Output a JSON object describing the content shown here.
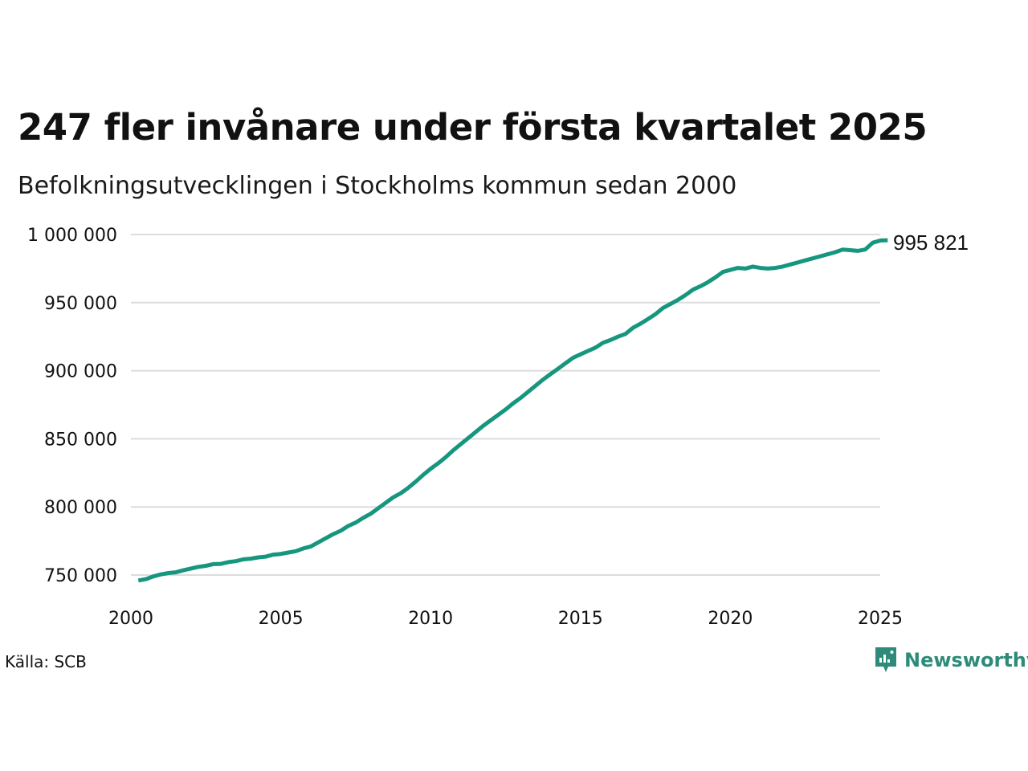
{
  "title": "247 fler invånare under första kvartalet 2025",
  "subtitle": "Befolkningsutvecklingen i Stockholms kommun sedan 2000",
  "source": "Källa: SCB",
  "brand": {
    "name": "Newsworthy",
    "icon": "newsworthy-logo-icon",
    "color": "#2e8b7a"
  },
  "colors": {
    "line": "#16967e",
    "grid": "#dcdcdc",
    "text": "#111111"
  },
  "chart_data": {
    "type": "line",
    "title": "247 fler invånare under första kvartalet 2025",
    "subtitle": "Befolkningsutvecklingen i Stockholms kommun sedan 2000",
    "xlabel": "",
    "ylabel": "",
    "xlim": [
      2000,
      2025
    ],
    "ylim": [
      750000,
      1000000
    ],
    "x_ticks": [
      2000,
      2005,
      2010,
      2015,
      2020,
      2025
    ],
    "x_tick_labels": [
      "2000",
      "2005",
      "2010",
      "2015",
      "2020",
      "2025"
    ],
    "y_ticks": [
      750000,
      800000,
      850000,
      900000,
      950000,
      1000000
    ],
    "y_tick_labels": [
      "750 000",
      "800 000",
      "850 000",
      "900 000",
      "950 000",
      "1 000 000"
    ],
    "grid": "horizontal",
    "end_label": "995 821",
    "series": [
      {
        "color": "#16967e",
        "points": [
          [
            2000.25,
            746000
          ],
          [
            2000.5,
            747000
          ],
          [
            2000.75,
            749000
          ],
          [
            2001.0,
            750500
          ],
          [
            2001.25,
            751500
          ],
          [
            2001.5,
            752000
          ],
          [
            2001.75,
            753500
          ],
          [
            2002.0,
            754800
          ],
          [
            2002.25,
            756000
          ],
          [
            2002.5,
            756800
          ],
          [
            2002.75,
            758000
          ],
          [
            2003.0,
            758200
          ],
          [
            2003.25,
            759500
          ],
          [
            2003.5,
            760200
          ],
          [
            2003.75,
            761500
          ],
          [
            2004.0,
            762000
          ],
          [
            2004.25,
            763000
          ],
          [
            2004.5,
            763500
          ],
          [
            2004.75,
            765000
          ],
          [
            2005.0,
            765500
          ],
          [
            2005.25,
            766500
          ],
          [
            2005.5,
            767500
          ],
          [
            2005.75,
            769500
          ],
          [
            2006.0,
            771000
          ],
          [
            2006.25,
            774000
          ],
          [
            2006.5,
            777000
          ],
          [
            2006.75,
            780000
          ],
          [
            2007.0,
            782500
          ],
          [
            2007.25,
            786000
          ],
          [
            2007.5,
            788500
          ],
          [
            2007.75,
            792000
          ],
          [
            2008.0,
            795000
          ],
          [
            2008.25,
            799000
          ],
          [
            2008.5,
            803000
          ],
          [
            2008.75,
            807000
          ],
          [
            2009.0,
            810000
          ],
          [
            2009.25,
            814000
          ],
          [
            2009.5,
            818500
          ],
          [
            2009.75,
            823500
          ],
          [
            2010.0,
            828000
          ],
          [
            2010.25,
            832000
          ],
          [
            2010.5,
            836500
          ],
          [
            2010.75,
            841500
          ],
          [
            2011.0,
            846000
          ],
          [
            2011.25,
            850500
          ],
          [
            2011.5,
            855000
          ],
          [
            2011.75,
            859500
          ],
          [
            2012.0,
            863500
          ],
          [
            2012.25,
            867500
          ],
          [
            2012.5,
            871500
          ],
          [
            2012.75,
            876000
          ],
          [
            2013.0,
            880000
          ],
          [
            2013.25,
            884500
          ],
          [
            2013.5,
            889000
          ],
          [
            2013.75,
            893500
          ],
          [
            2014.0,
            897500
          ],
          [
            2014.25,
            901500
          ],
          [
            2014.5,
            905500
          ],
          [
            2014.75,
            909500
          ],
          [
            2015.0,
            912000
          ],
          [
            2015.25,
            914500
          ],
          [
            2015.5,
            917000
          ],
          [
            2015.75,
            920500
          ],
          [
            2016.0,
            922500
          ],
          [
            2016.25,
            925000
          ],
          [
            2016.5,
            927000
          ],
          [
            2016.75,
            931500
          ],
          [
            2017.0,
            934500
          ],
          [
            2017.25,
            938000
          ],
          [
            2017.5,
            941500
          ],
          [
            2017.75,
            946000
          ],
          [
            2018.0,
            949000
          ],
          [
            2018.25,
            952000
          ],
          [
            2018.5,
            955500
          ],
          [
            2018.75,
            959500
          ],
          [
            2019.0,
            962000
          ],
          [
            2019.25,
            965000
          ],
          [
            2019.5,
            968500
          ],
          [
            2019.75,
            972500
          ],
          [
            2020.0,
            974000
          ],
          [
            2020.25,
            975500
          ],
          [
            2020.5,
            975000
          ],
          [
            2020.75,
            976500
          ],
          [
            2021.0,
            975500
          ],
          [
            2021.25,
            975000
          ],
          [
            2021.5,
            975500
          ],
          [
            2021.75,
            976500
          ],
          [
            2022.0,
            978000
          ],
          [
            2022.25,
            979500
          ],
          [
            2022.5,
            981000
          ],
          [
            2022.75,
            982500
          ],
          [
            2023.0,
            984000
          ],
          [
            2023.25,
            985500
          ],
          [
            2023.5,
            987000
          ],
          [
            2023.75,
            989000
          ],
          [
            2024.0,
            988500
          ],
          [
            2024.25,
            988000
          ],
          [
            2024.5,
            989000
          ],
          [
            2024.75,
            994000
          ],
          [
            2025.0,
            995574
          ],
          [
            2025.25,
            995821
          ]
        ]
      }
    ]
  }
}
